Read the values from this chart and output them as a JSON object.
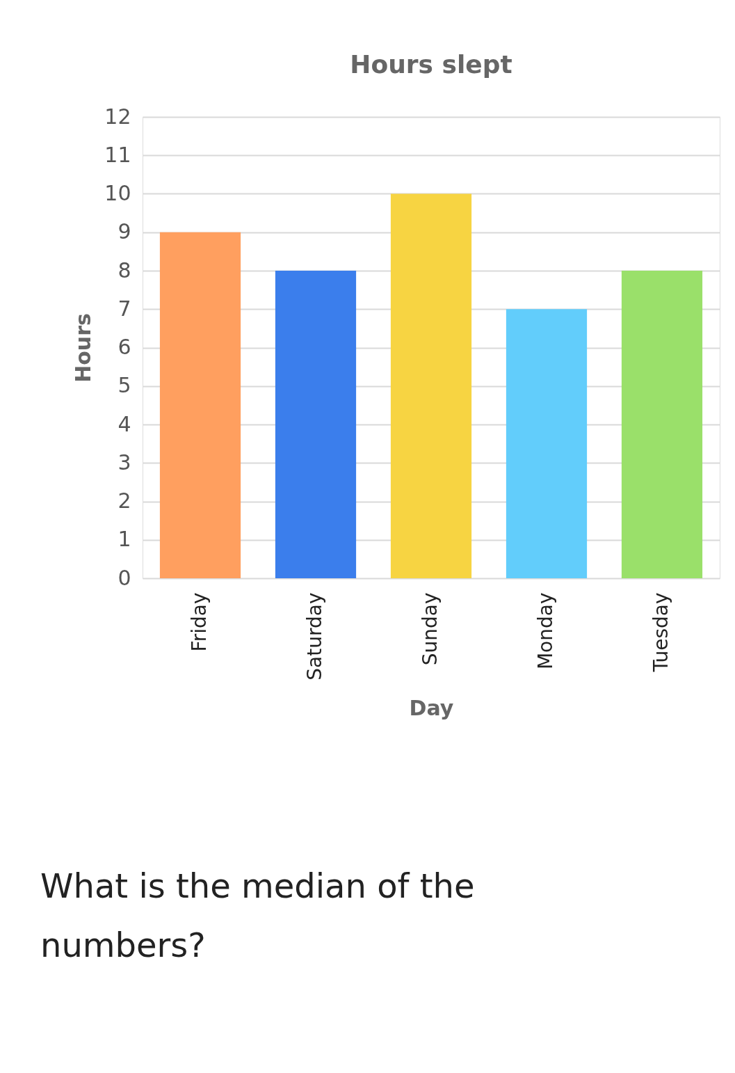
{
  "chart_data": {
    "type": "bar",
    "title": "Hours slept",
    "xlabel": "Day",
    "ylabel": "Hours",
    "categories": [
      "Friday",
      "Saturday",
      "Sunday",
      "Monday",
      "Tuesday"
    ],
    "values": [
      9,
      8,
      10,
      7,
      8
    ],
    "colors": [
      "#ff9f5f",
      "#3b7eec",
      "#f7d442",
      "#62cdfb",
      "#9ae06a"
    ],
    "ylim": [
      0,
      12
    ],
    "yticks": [
      0,
      1,
      2,
      3,
      4,
      5,
      6,
      7,
      8,
      9,
      10,
      11,
      12
    ],
    "grid": "y",
    "annotations": [
      "What is the median of the numbers?"
    ]
  }
}
